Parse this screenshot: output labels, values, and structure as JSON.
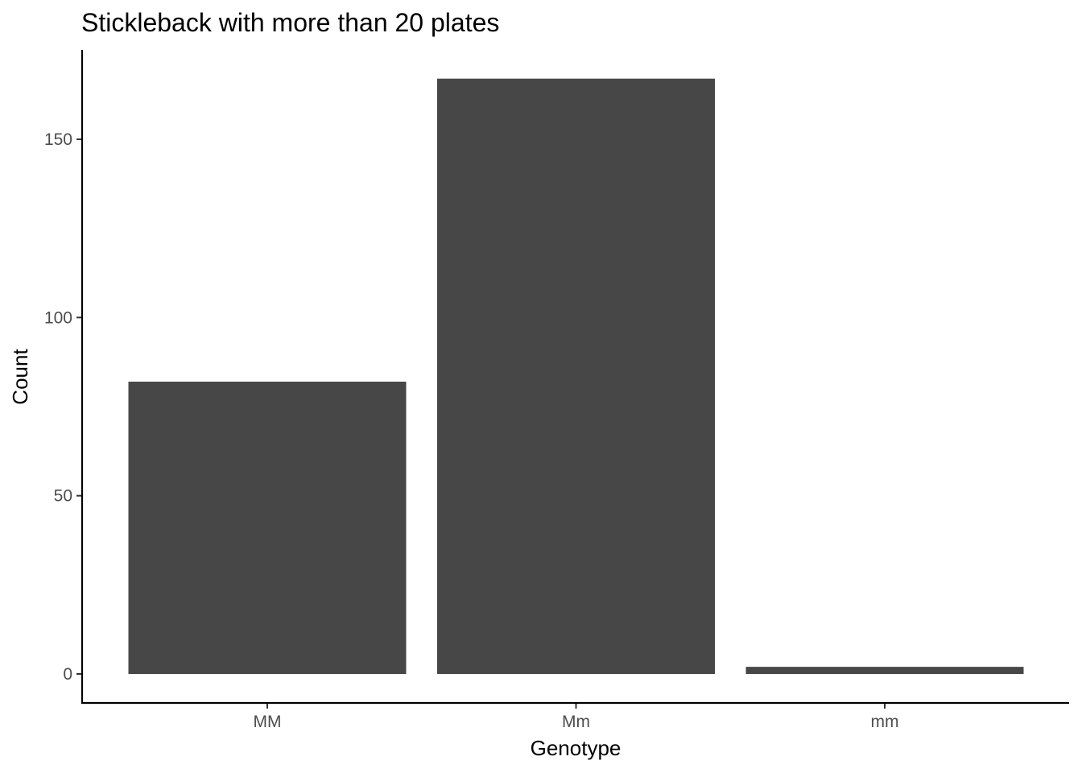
{
  "chart_data": {
    "type": "bar",
    "title": "Stickleback with more than 20 plates",
    "xlabel": "Genotype",
    "ylabel": "Count",
    "categories": [
      "MM",
      "Mm",
      "mm"
    ],
    "values": [
      82,
      167,
      2
    ],
    "ylim": [
      0,
      170
    ],
    "yticks": [
      0,
      50,
      100,
      150
    ],
    "bar_color": "#474747",
    "grid": false,
    "legend": "none"
  }
}
